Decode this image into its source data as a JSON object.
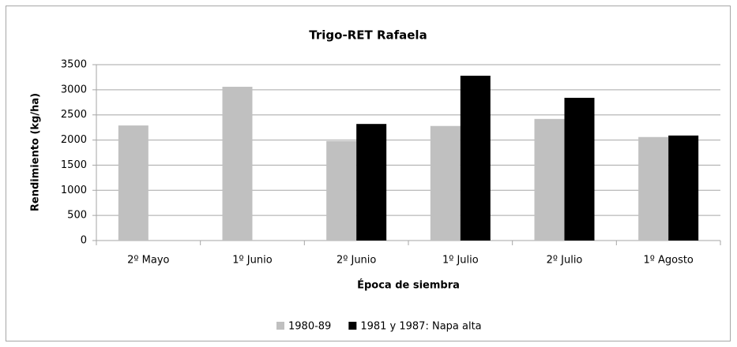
{
  "chart_data": {
    "type": "bar",
    "title": "Trigo-RET Rafaela",
    "x_label": "Época de siembra",
    "y_label": "Rendimiento (kg/ha)",
    "categories": [
      "2º Mayo",
      "1º Junio",
      "2º Junio",
      "1º Julio",
      "2º Julio",
      "1º Agosto"
    ],
    "series": [
      {
        "name": "1980-89",
        "color": "#c0c0c0",
        "values": [
          2290,
          3060,
          1980,
          2280,
          2420,
          2060
        ]
      },
      {
        "name": "1981 y 1987: Napa alta",
        "color": "#000000",
        "values": [
          null,
          null,
          2320,
          3280,
          2840,
          2090
        ]
      }
    ],
    "ylim": [
      0,
      3500
    ],
    "yticks": [
      0,
      500,
      1000,
      1500,
      2000,
      2500,
      3000,
      3500
    ],
    "grid": true,
    "legend": "bottom"
  }
}
